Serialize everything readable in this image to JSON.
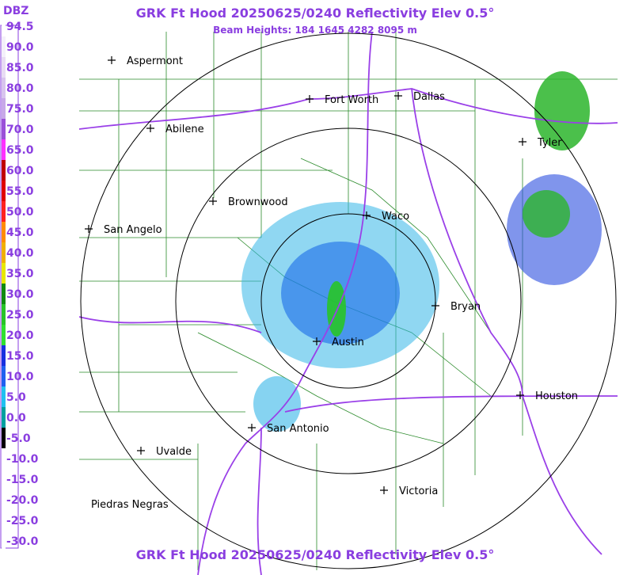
{
  "header": {
    "title": "GRK Ft Hood 20250625/0240 Reflectivity Elev 0.5°",
    "subtitle": "Beam Heights: 184 1645 4282 8095 m"
  },
  "legend": {
    "unit": "DBZ",
    "labels": [
      "94.5",
      "90.0",
      "85.0",
      "80.0",
      "75.0",
      "70.0",
      "65.0",
      "60.0",
      "55.0",
      "50.0",
      "45.0",
      "40.0",
      "35.0",
      "30.0",
      "25.0",
      "20.0",
      "15.0",
      "10.0",
      "5.0",
      "0.0",
      "-5.0",
      "-10.0",
      "-15.0",
      "-20.0",
      "-25.0",
      "-30.0"
    ]
  },
  "cities": [
    "Aspermont",
    "Fort Worth",
    "Dallas",
    "Abilene",
    "Tyler",
    "Brownwood",
    "Waco",
    "San Angelo",
    "Bryan",
    "Austin",
    "Houston",
    "San Antonio",
    "Uvalde",
    "Victoria",
    "Piedras Negras"
  ],
  "footer": {
    "title": "GRK Ft Hood 20250625/0240 Reflectivity Elev 0.5°"
  }
}
